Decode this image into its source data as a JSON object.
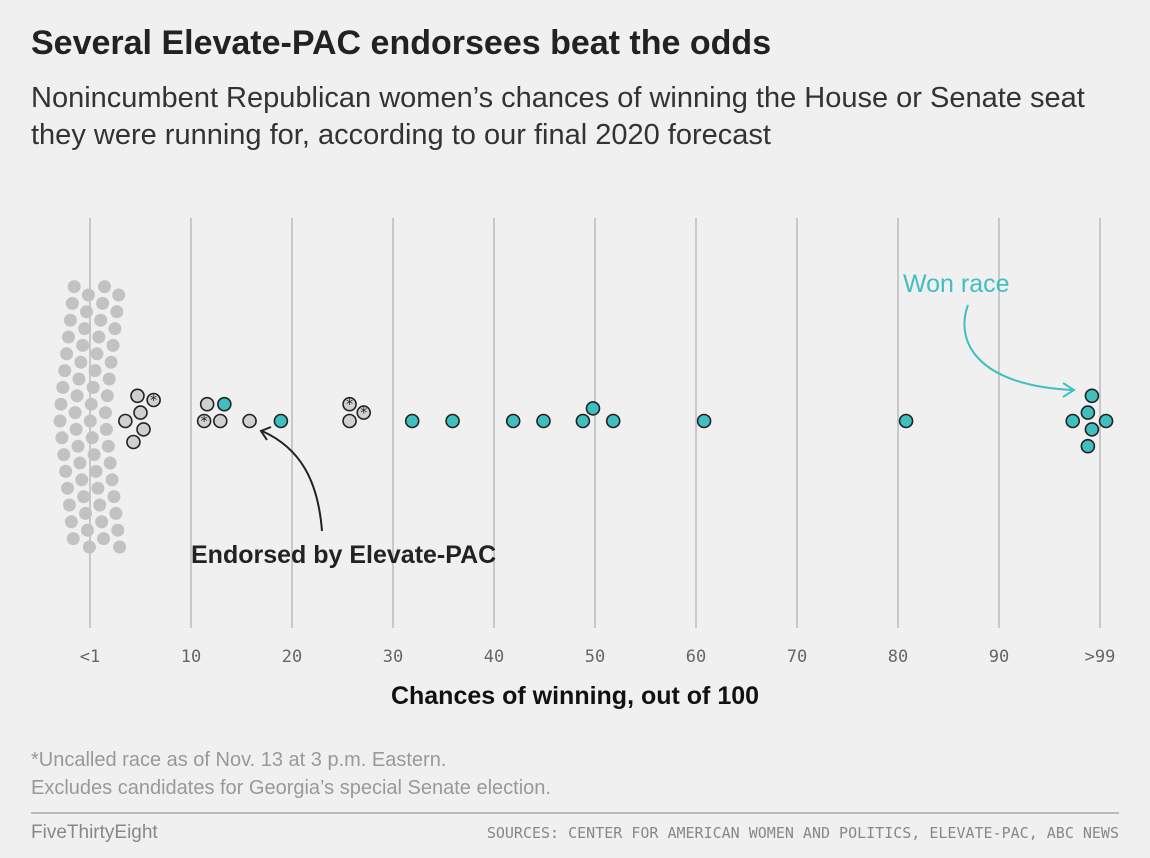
{
  "header": {
    "title": "Several Elevate-PAC endorsees beat the odds",
    "subtitle": "Nonincumbent Republican women’s chances of winning the House or Senate seat they were running for, according to our final 2020 forecast"
  },
  "annotations": {
    "endorsed": "Endorsed by Elevate-PAC",
    "won": "Won race"
  },
  "footer": {
    "note1": "*Uncalled race as of Nov. 13 at 3 p.m. Eastern.",
    "note2": "Excludes candidates for Georgia’s special Senate election.",
    "brand": "FiveThirtyEight",
    "sources": "SOURCES: CENTER FOR AMERICAN WOMEN AND POLITICS, ELEVATE-PAC, ABC NEWS"
  },
  "colors": {
    "background": "#f0f0f0",
    "not_endorsed": "#c2c2c2",
    "endorsed_fill": "#d0d0d0",
    "won": "#3fbfbf",
    "gridline": "#c8c8c8",
    "annotation_dark": "#222222"
  },
  "chart_data": {
    "type": "scatter",
    "subtype": "beeswarm",
    "xlabel": "Chances of winning, out of 100",
    "xlim": [
      0,
      100
    ],
    "x_ticks": [
      0,
      10,
      20,
      30,
      40,
      50,
      60,
      70,
      80,
      90,
      100
    ],
    "x_tick_labels": [
      "<1",
      "10",
      "20",
      "30",
      "40",
      "50",
      "60",
      "70",
      "80",
      "90",
      ">99"
    ],
    "grid": true,
    "legend": "none (direct annotations)",
    "categories_note": "not_endorsed = lost, not endorsed; endorsed = endorsed by Elevate-PAC, lost; endorsed_uncalled = endorsed, uncalled race (*); won = won race (endorsed by Elevate-PAC)",
    "not_endorsed_below_1_count": 64,
    "points": [
      {
        "x": 3.5,
        "group": "endorsed"
      },
      {
        "x": 5.0,
        "group": "endorsed"
      },
      {
        "x": 5.3,
        "group": "endorsed"
      },
      {
        "x": 4.3,
        "group": "endorsed"
      },
      {
        "x": 4.7,
        "group": "endorsed"
      },
      {
        "x": 6.3,
        "group": "endorsed_uncalled"
      },
      {
        "x": 11.3,
        "group": "endorsed_uncalled"
      },
      {
        "x": 12.9,
        "group": "endorsed"
      },
      {
        "x": 11.6,
        "group": "endorsed"
      },
      {
        "x": 13.3,
        "group": "won"
      },
      {
        "x": 15.8,
        "group": "endorsed"
      },
      {
        "x": 18.9,
        "group": "won"
      },
      {
        "x": 25.7,
        "group": "endorsed"
      },
      {
        "x": 27.1,
        "group": "endorsed_uncalled"
      },
      {
        "x": 25.7,
        "group": "endorsed_uncalled"
      },
      {
        "x": 31.9,
        "group": "won"
      },
      {
        "x": 35.9,
        "group": "won"
      },
      {
        "x": 41.9,
        "group": "won"
      },
      {
        "x": 44.9,
        "group": "won"
      },
      {
        "x": 48.8,
        "group": "won"
      },
      {
        "x": 49.8,
        "group": "won"
      },
      {
        "x": 51.8,
        "group": "won"
      },
      {
        "x": 60.8,
        "group": "won"
      },
      {
        "x": 80.8,
        "group": "won"
      },
      {
        "x": 97.3,
        "group": "won"
      },
      {
        "x": 98.8,
        "group": "won"
      },
      {
        "x": 99.2,
        "group": "won"
      },
      {
        "x": 99.2,
        "group": "won"
      },
      {
        "x": 98.8,
        "group": "won"
      },
      {
        "x": 100.6,
        "group": "won"
      }
    ]
  }
}
